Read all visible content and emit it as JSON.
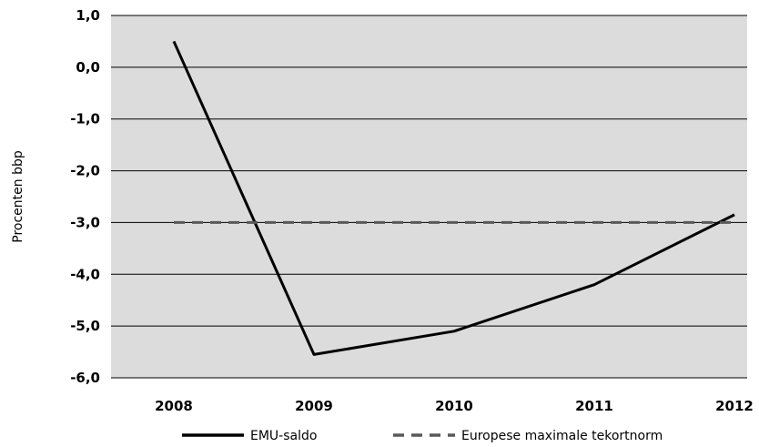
{
  "chart_data": {
    "type": "line",
    "categories": [
      "2008",
      "2009",
      "2010",
      "2011",
      "2012"
    ],
    "ylabel": "Procenten bbp",
    "ylim": [
      -6.0,
      1.0
    ],
    "yticks": [
      "1,0",
      "0,0",
      "-1,0",
      "-2,0",
      "-3,0",
      "-4,0",
      "-5,0",
      "-6,0"
    ],
    "ytick_values": [
      1,
      0,
      -1,
      -2,
      -3,
      -4,
      -5,
      -6
    ],
    "grid": true,
    "legend_position": "bottom",
    "series": [
      {
        "name": "EMU-saldo",
        "style": "solid",
        "color": "#000000",
        "values": [
          0.5,
          -5.55,
          -5.1,
          -4.2,
          -2.85
        ]
      },
      {
        "name": "Europese maximale tekortnorm",
        "style": "dashed",
        "color": "#595959",
        "values": [
          -3.0,
          -3.0,
          -3.0,
          -3.0,
          -3.0
        ]
      }
    ],
    "plot_background": "#dcdcdc"
  }
}
